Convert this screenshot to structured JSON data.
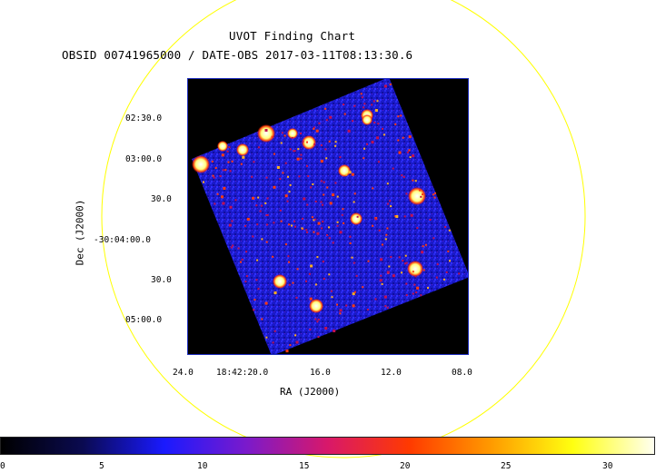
{
  "header": {
    "title": "UVOT Finding Chart",
    "subtitle": "OBSID 00741965000 / DATE-OBS 2017-03-11T08:13:30.6"
  },
  "axes": {
    "ra_label": "RA (J2000)",
    "dec_label": "Dec (J2000)",
    "ra_ticks": [
      "24.0",
      "18:42:20.0",
      "16.0",
      "12.0",
      "08.0"
    ],
    "dec_ticks": [
      "02:30.0",
      "03:00.0",
      "30.0",
      "-30:04:00.0",
      "30.0",
      "05:00.0"
    ]
  },
  "colorbar": {
    "ticks": [
      "0",
      "5",
      "10",
      "15",
      "20",
      "25",
      "30"
    ],
    "range": [
      0,
      32.5
    ],
    "colors": [
      "#000000",
      "#0a0a50",
      "#1a1aff",
      "#7a1acc",
      "#d8186a",
      "#ff3a00",
      "#ff9a00",
      "#ffff10",
      "#fffff0"
    ]
  },
  "colors": {
    "circle": "#ffff00",
    "frame": "#2030c0",
    "field_background": "#1a1ac8"
  }
}
